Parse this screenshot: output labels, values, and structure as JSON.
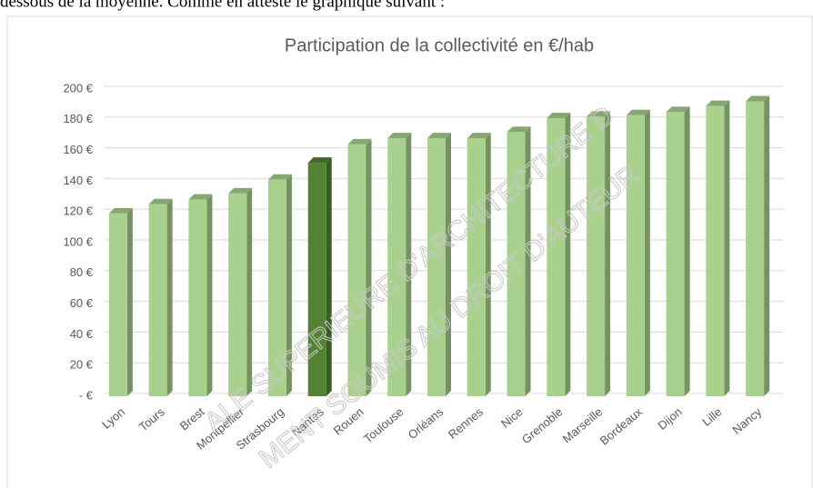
{
  "text": "dessous de la moyenne. Comme en atteste le graphique suivant :",
  "watermark": [
    "ALE SUPERIEURE D'ARCHITECTURE D",
    "MENT SOUMIS AU DROIT D'AUTEUR"
  ],
  "chart_data": {
    "type": "bar",
    "title": "Participation de la collectivité en €/hab",
    "categories": [
      "Lyon",
      "Tours",
      "Brest",
      "Montpellier",
      "Strasbourg",
      "Nantes",
      "Rouen",
      "Toulouse",
      "Orléans",
      "Rennes",
      "Nice",
      "Grenoble",
      "Marseille",
      "Bordeaux",
      "Dijon",
      "Lille",
      "Nancy"
    ],
    "values": [
      119,
      125,
      128,
      132,
      141,
      152,
      164,
      168,
      168,
      168,
      172,
      181,
      182,
      183,
      185,
      189,
      192
    ],
    "colors": [
      "#a9d18e",
      "#a9d18e",
      "#a9d18e",
      "#a9d18e",
      "#a9d18e",
      "#548235",
      "#a9d18e",
      "#a9d18e",
      "#a9d18e",
      "#a9d18e",
      "#a9d18e",
      "#a9d18e",
      "#a9d18e",
      "#a9d18e",
      "#a9d18e",
      "#a9d18e",
      "#a9d18e"
    ],
    "ylim": [
      0,
      200
    ],
    "yticks": [
      {
        "value": 0,
        "label": "-   €"
      },
      {
        "value": 20,
        "label": "20 €"
      },
      {
        "value": 40,
        "label": "40 €"
      },
      {
        "value": 60,
        "label": "60 €"
      },
      {
        "value": 80,
        "label": "80 €"
      },
      {
        "value": 100,
        "label": "100 €"
      },
      {
        "value": 120,
        "label": "120 €"
      },
      {
        "value": 140,
        "label": "140 €"
      },
      {
        "value": 160,
        "label": "160 €"
      },
      {
        "value": 180,
        "label": "180 €"
      },
      {
        "value": 200,
        "label": "200 €"
      }
    ],
    "grid": true
  }
}
